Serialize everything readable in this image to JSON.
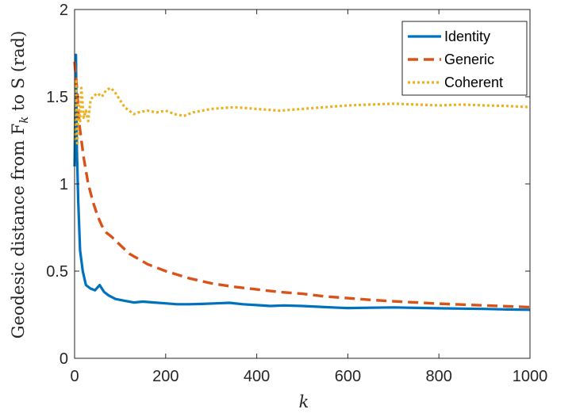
{
  "chart_data": {
    "type": "line",
    "xlabel": "k",
    "ylabel": "Geodesic distance from F_k to S (rad)",
    "ylabel_parts": {
      "before": "Geodesic distance from F",
      "subscript": "k",
      "after": " to S (rad)"
    },
    "xlim": [
      0,
      1000
    ],
    "ylim": [
      0,
      2
    ],
    "x_ticks": [
      0,
      200,
      400,
      600,
      800,
      1000
    ],
    "y_ticks": [
      0,
      0.5,
      1,
      1.5,
      2
    ],
    "x_tick_labels": [
      "0",
      "200",
      "400",
      "600",
      "800",
      "1000"
    ],
    "y_tick_labels": [
      "0",
      "0.5",
      "1",
      "1.5",
      "2"
    ],
    "grid": false,
    "legend_position": "top-right",
    "series": [
      {
        "name": "Identity",
        "color": "#0072BD",
        "style": "solid",
        "x": [
          0,
          3,
          5,
          8,
          12,
          18,
          25,
          35,
          45,
          55,
          65,
          75,
          90,
          110,
          130,
          150,
          175,
          200,
          225,
          250,
          280,
          310,
          340,
          370,
          400,
          430,
          460,
          500,
          540,
          580,
          600,
          650,
          700,
          750,
          800,
          850,
          900,
          950,
          1000
        ],
        "values": [
          1.1,
          1.74,
          1.2,
          0.9,
          0.62,
          0.5,
          0.42,
          0.4,
          0.39,
          0.42,
          0.38,
          0.36,
          0.34,
          0.33,
          0.32,
          0.325,
          0.32,
          0.315,
          0.31,
          0.31,
          0.312,
          0.315,
          0.318,
          0.31,
          0.305,
          0.3,
          0.303,
          0.3,
          0.295,
          0.29,
          0.288,
          0.29,
          0.292,
          0.289,
          0.287,
          0.285,
          0.283,
          0.28,
          0.278
        ]
      },
      {
        "name": "Generic",
        "color": "#D95319",
        "style": "dashed",
        "x": [
          0,
          5,
          10,
          15,
          20,
          30,
          40,
          50,
          60,
          70,
          80,
          100,
          120,
          140,
          160,
          180,
          200,
          250,
          300,
          350,
          400,
          450,
          500,
          550,
          600,
          650,
          700,
          750,
          800,
          850,
          900,
          950,
          1000
        ],
        "values": [
          1.7,
          1.55,
          1.35,
          1.25,
          1.15,
          1.0,
          0.9,
          0.82,
          0.76,
          0.72,
          0.7,
          0.65,
          0.6,
          0.57,
          0.54,
          0.52,
          0.5,
          0.46,
          0.43,
          0.41,
          0.395,
          0.38,
          0.37,
          0.355,
          0.345,
          0.335,
          0.327,
          0.32,
          0.313,
          0.308,
          0.303,
          0.298,
          0.293
        ]
      },
      {
        "name": "Coherent",
        "color": "#EDB120",
        "style": "dotted",
        "x": [
          0,
          3,
          6,
          9,
          12,
          15,
          20,
          25,
          30,
          35,
          40,
          50,
          60,
          70,
          80,
          90,
          100,
          110,
          120,
          130,
          140,
          160,
          180,
          200,
          220,
          240,
          260,
          280,
          300,
          350,
          400,
          450,
          500,
          550,
          600,
          650,
          700,
          750,
          800,
          850,
          900,
          950,
          1000
        ],
        "values": [
          1.25,
          1.6,
          1.22,
          1.45,
          1.35,
          1.55,
          1.38,
          1.42,
          1.36,
          1.48,
          1.5,
          1.52,
          1.5,
          1.54,
          1.55,
          1.52,
          1.48,
          1.44,
          1.42,
          1.4,
          1.41,
          1.42,
          1.41,
          1.42,
          1.4,
          1.39,
          1.41,
          1.42,
          1.43,
          1.44,
          1.43,
          1.42,
          1.43,
          1.44,
          1.45,
          1.455,
          1.46,
          1.455,
          1.45,
          1.455,
          1.45,
          1.447,
          1.44
        ]
      }
    ]
  }
}
